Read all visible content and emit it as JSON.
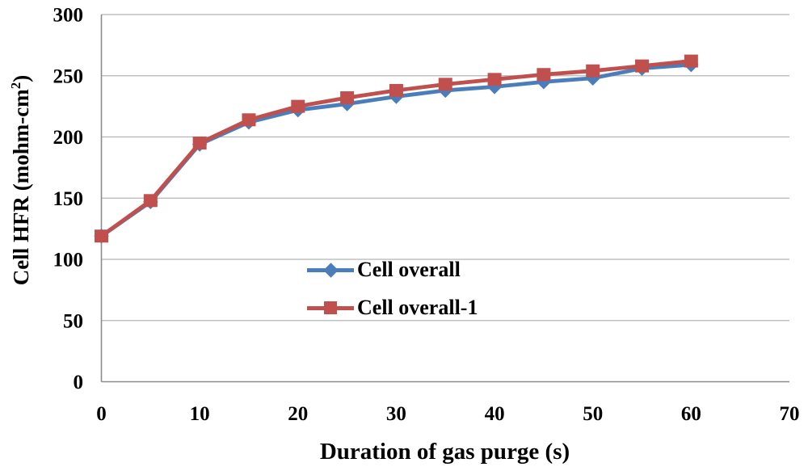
{
  "chart_data": {
    "type": "line",
    "title": "",
    "xlabel": "Duration of gas purge (s)",
    "ylabel": "Cell HFR (mohm-cm²)",
    "xlim": [
      0,
      70
    ],
    "ylim": [
      0,
      300
    ],
    "x_ticks": [
      0,
      10,
      20,
      30,
      40,
      50,
      60,
      70
    ],
    "y_ticks": [
      0,
      50,
      100,
      150,
      200,
      250,
      300
    ],
    "grid": "horizontal-only",
    "legend_position": "inside-center",
    "x": [
      0,
      5,
      10,
      15,
      20,
      25,
      30,
      35,
      40,
      45,
      50,
      55,
      60
    ],
    "series": [
      {
        "name": "Cell overall",
        "marker": "diamond",
        "color": "#4a7ebb",
        "values": [
          119,
          147,
          194,
          212,
          222,
          227,
          233,
          238,
          241,
          245,
          248,
          256,
          259
        ]
      },
      {
        "name": "Cell overall-1",
        "marker": "square",
        "color": "#c0504d",
        "values": [
          119,
          148,
          195,
          214,
          225,
          232,
          238,
          243,
          247,
          251,
          254,
          258,
          262
        ]
      }
    ],
    "colors": {
      "gridline": "#b5b5b5",
      "axis": "#8c8c8c",
      "text": "#000000",
      "background": "#ffffff"
    }
  },
  "axes": {
    "x_title": "Duration of gas purge (s)",
    "y_title_pre": "Cell HFR (mohm-cm",
    "y_title_sup": "2",
    "y_title_post": ")"
  }
}
